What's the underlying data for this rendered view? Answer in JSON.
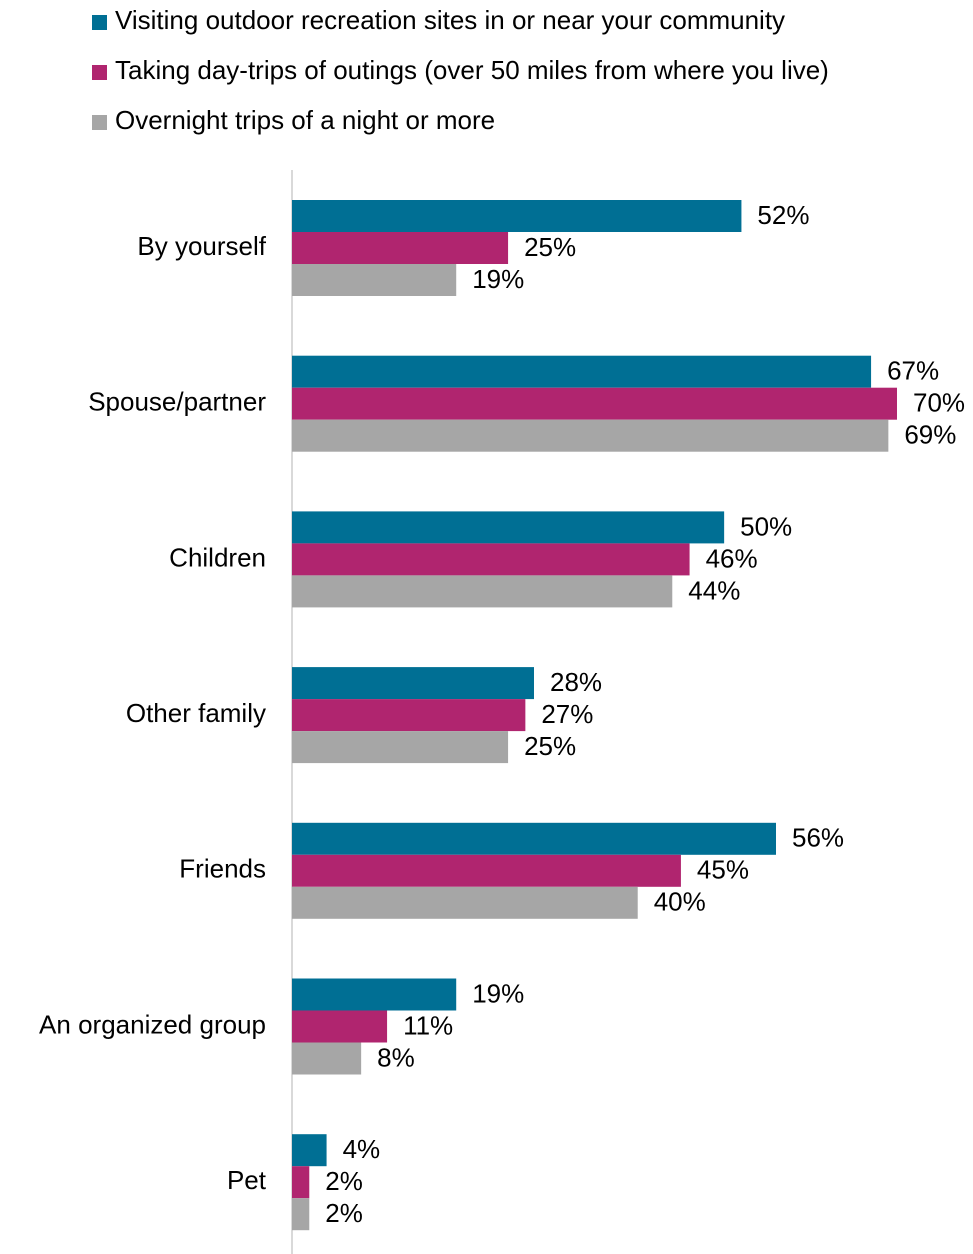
{
  "chart_data": {
    "type": "bar",
    "orientation": "horizontal",
    "categories": [
      "By yourself",
      "Spouse/partner",
      "Children",
      "Other family",
      "Friends",
      "An organized group",
      "Pet"
    ],
    "series": [
      {
        "name": "Visiting outdoor recreation sites in or near your community",
        "color": "#006f94",
        "values": [
          52,
          67,
          50,
          28,
          56,
          19,
          4
        ],
        "value_labels": [
          "52%",
          "67%",
          "50%",
          "28%",
          "56%",
          "19%",
          "4%"
        ]
      },
      {
        "name": "Taking day-trips of outings (over 50 miles from where you live)",
        "color": "#b0256f",
        "values": [
          25,
          70,
          46,
          27,
          45,
          11,
          2
        ],
        "value_labels": [
          "25%",
          "70%",
          "46%",
          "27%",
          "45%",
          "11%",
          "2%"
        ]
      },
      {
        "name": "Overnight trips of a night or more",
        "color": "#a6a6a6",
        "values": [
          19,
          69,
          44,
          25,
          40,
          8,
          2
        ],
        "value_labels": [
          "19%",
          "69%",
          "44%",
          "25%",
          "40%",
          "8%",
          "2%"
        ]
      }
    ],
    "legend": "top"
  }
}
